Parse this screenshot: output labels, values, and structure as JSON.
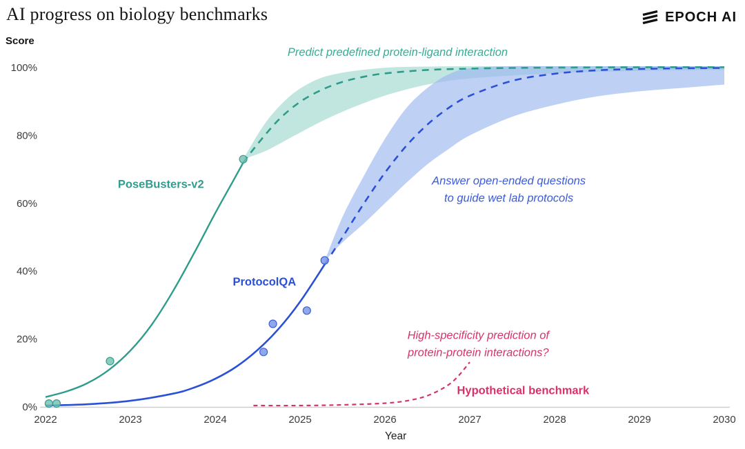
{
  "header": {
    "title": "AI progress on biology benchmarks",
    "brand": "EPOCH AI"
  },
  "chart_data": {
    "type": "line",
    "title": "AI progress on biology benchmarks",
    "xlabel": "Year",
    "ylabel": "Score",
    "x_range": [
      2022,
      2030
    ],
    "y_range": [
      0,
      100
    ],
    "x_ticks": [
      2022,
      2023,
      2024,
      2025,
      2026,
      2027,
      2028,
      2029,
      2030
    ],
    "y_ticks": [
      0,
      20,
      40,
      60,
      80,
      100
    ],
    "y_tick_suffix": "%",
    "grid": false,
    "legend": "none (inline colored labels)",
    "bands": [
      {
        "name": "posebusters-v2-projection-band",
        "color": "#8ed1c5",
        "opacity": 0.55,
        "x": [
          2024.33,
          2024.6,
          2024.9,
          2025.2,
          2025.5,
          2025.8,
          2026.1,
          2026.5,
          2027,
          2028,
          2029,
          2030
        ],
        "upper": [
          73,
          84,
          92,
          96.5,
          98.5,
          99.5,
          100.1,
          100.3,
          100.4,
          100.4,
          100.4,
          100.4
        ],
        "lower": [
          73,
          75.5,
          79.5,
          83.5,
          87,
          90,
          92.5,
          95,
          96.8,
          98.3,
          99,
          99.3
        ]
      },
      {
        "name": "protocolqa-projection-band",
        "color": "#9db7ef",
        "opacity": 0.65,
        "x": [
          2025.29,
          2025.5,
          2025.75,
          2026,
          2026.25,
          2026.5,
          2026.75,
          2027,
          2027.5,
          2028,
          2028.5,
          2029,
          2029.5,
          2030
        ],
        "upper": [
          43,
          56,
          68,
          79,
          88,
          94,
          98,
          99.8,
          100.4,
          100.4,
          100.4,
          100.4,
          100.4,
          100.4
        ],
        "lower": [
          43,
          48.5,
          54,
          60,
          66,
          71.5,
          76,
          80,
          85.5,
          89,
          91.5,
          93,
          94,
          95
        ]
      }
    ],
    "series": [
      {
        "name": "PoseBusters-v2 fit",
        "color": "#2e9c8b",
        "dashed": false,
        "width": 2.4,
        "points": [
          [
            2022,
            2.9
          ],
          [
            2022.25,
            4.6
          ],
          [
            2022.5,
            7.1
          ],
          [
            2022.75,
            11
          ],
          [
            2023,
            16.6
          ],
          [
            2023.25,
            24.2
          ],
          [
            2023.5,
            34
          ],
          [
            2023.75,
            45.3
          ],
          [
            2024,
            57.1
          ],
          [
            2024.2,
            66.1
          ],
          [
            2024.33,
            72
          ]
        ]
      },
      {
        "name": "PoseBusters-v2 projection",
        "color": "#2e9c8b",
        "dashed": true,
        "width": 2.6,
        "dash": "10 8",
        "points": [
          [
            2024.33,
            72
          ],
          [
            2024.5,
            77.5
          ],
          [
            2024.75,
            84.7
          ],
          [
            2025,
            89.9
          ],
          [
            2025.25,
            93.4
          ],
          [
            2025.5,
            95.8
          ],
          [
            2025.75,
            97.3
          ],
          [
            2026,
            98.3
          ],
          [
            2026.5,
            99.3
          ],
          [
            2027,
            99.7
          ],
          [
            2027.5,
            99.9
          ],
          [
            2028,
            100
          ],
          [
            2029,
            100.1
          ],
          [
            2030,
            100.1
          ]
        ]
      },
      {
        "name": "ProtocolQA fit",
        "color": "#2b50d8",
        "dashed": false,
        "width": 2.6,
        "points": [
          [
            2022,
            0.4
          ],
          [
            2022.5,
            0.8
          ],
          [
            2023,
            1.8
          ],
          [
            2023.5,
            3.9
          ],
          [
            2023.75,
            5.7
          ],
          [
            2024,
            8.3
          ],
          [
            2024.25,
            11.9
          ],
          [
            2024.5,
            16.8
          ],
          [
            2024.75,
            23.1
          ],
          [
            2025,
            31
          ],
          [
            2025.29,
            42
          ]
        ]
      },
      {
        "name": "ProtocolQA projection",
        "color": "#2b50d8",
        "dashed": true,
        "width": 2.6,
        "dash": "10 8",
        "points": [
          [
            2025.29,
            42
          ],
          [
            2025.5,
            50
          ],
          [
            2025.75,
            59.9
          ],
          [
            2026,
            69
          ],
          [
            2026.25,
            76.9
          ],
          [
            2026.5,
            83.2
          ],
          [
            2026.75,
            88.1
          ],
          [
            2027,
            91.7
          ],
          [
            2027.5,
            96.1
          ],
          [
            2028,
            98.2
          ],
          [
            2028.5,
            99.2
          ],
          [
            2029,
            99.6
          ],
          [
            2029.5,
            99.8
          ],
          [
            2030,
            99.9
          ]
        ]
      },
      {
        "name": "Hypothetical benchmark",
        "color": "#d6336c",
        "dashed": true,
        "width": 2.2,
        "dash": "6 5",
        "points": [
          [
            2024.45,
            0.4
          ],
          [
            2025,
            0.4
          ],
          [
            2025.5,
            0.6
          ],
          [
            2026,
            1.1
          ],
          [
            2026.3,
            2
          ],
          [
            2026.55,
            3.8
          ],
          [
            2026.8,
            7.5
          ],
          [
            2027,
            13.2
          ]
        ]
      }
    ],
    "scatter": [
      {
        "name": "PoseBusters-v2 observations",
        "fill": "#6fc0b3",
        "stroke": "#3d9c8c",
        "r": 5.5,
        "opacity": 0.8,
        "points": [
          [
            2022.04,
            1
          ],
          [
            2022.13,
            1
          ],
          [
            2022.76,
            13.5
          ],
          [
            2024.33,
            73
          ]
        ]
      },
      {
        "name": "ProtocolQA observations",
        "fill": "#7b99e8",
        "stroke": "#3c5fd6",
        "r": 5.5,
        "opacity": 0.85,
        "points": [
          [
            2024.57,
            16.2
          ],
          [
            2024.68,
            24.5
          ],
          [
            2025.08,
            28.4
          ],
          [
            2025.29,
            43.2
          ]
        ]
      }
    ],
    "annotations": [
      {
        "id": "posebusters-task",
        "lines": [
          "Predict predefined protein-ligand interaction"
        ],
        "x": 2026.15,
        "y": 103.5,
        "color": "#3aaa97",
        "italic": true,
        "bold": false,
        "anchor": "middle",
        "size": 16.5
      },
      {
        "id": "protocolqa-task",
        "lines": [
          "Answer open-ended questions",
          "to guide wet lab protocols"
        ],
        "x": 2027.46,
        "y": 65.5,
        "color": "#3b5bdb",
        "italic": true,
        "bold": false,
        "anchor": "middle",
        "size": 16.5
      },
      {
        "id": "hypothetical-task",
        "lines": [
          "High-specificity prediction of",
          "protein-protein interactions?"
        ],
        "x": 2027.1,
        "y": 20,
        "color": "#d6336c",
        "italic": true,
        "bold": false,
        "anchor": "middle",
        "size": 16.5
      },
      {
        "id": "hypothetical-label",
        "lines": [
          "Hypothetical benchmark"
        ],
        "x": 2026.85,
        "y": 3.8,
        "color": "#d6336c",
        "italic": false,
        "bold": true,
        "anchor": "start",
        "size": 16.5
      },
      {
        "id": "posebusters-label",
        "lines": [
          "PoseBusters-v2"
        ],
        "x": 2023.36,
        "y": 64.5,
        "color": "#2f9e8f",
        "italic": false,
        "bold": true,
        "anchor": "middle",
        "size": 16.5
      },
      {
        "id": "protocolqa-label",
        "lines": [
          "ProtocolQA"
        ],
        "x": 2024.58,
        "y": 35.8,
        "color": "#2b50d8",
        "italic": false,
        "bold": true,
        "anchor": "middle",
        "size": 16.5
      }
    ]
  }
}
